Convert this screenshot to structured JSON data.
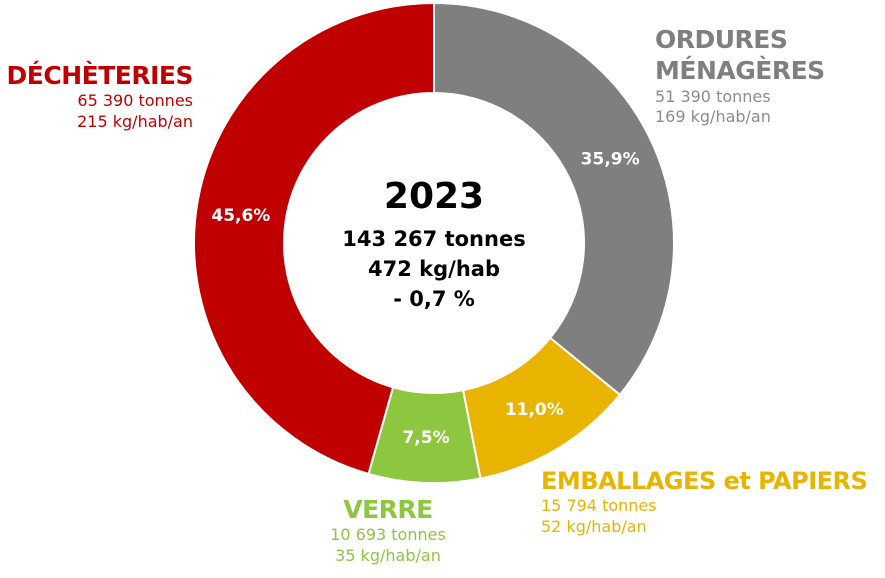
{
  "chart_data": {
    "type": "donut",
    "categories": [
      "ORDURES MÉNAGÈRES",
      "EMBALLAGES et PAPIERS",
      "VERRE",
      "DÉCHÈTERIES"
    ],
    "values": [
      35.9,
      11.0,
      7.5,
      45.6
    ],
    "value_labels": [
      "35,9%",
      "11,0%",
      "7,5%",
      "45,6%"
    ],
    "colors": [
      "#7f7f7f",
      "#e8b400",
      "#8dc63f",
      "#c00000"
    ],
    "details": [
      [
        "51 390 tonnes",
        "169 kg/hab/an"
      ],
      [
        "15 794 tonnes",
        "52 kg/hab/an"
      ],
      [
        "10 693 tonnes",
        "35 kg/hab/an"
      ],
      [
        "65 390 tonnes",
        "215 kg/hab/an"
      ]
    ],
    "center": {
      "title": "2023",
      "lines": [
        "143 267 tonnes",
        "472 kg/hab",
        "- 0,7 %"
      ]
    }
  }
}
